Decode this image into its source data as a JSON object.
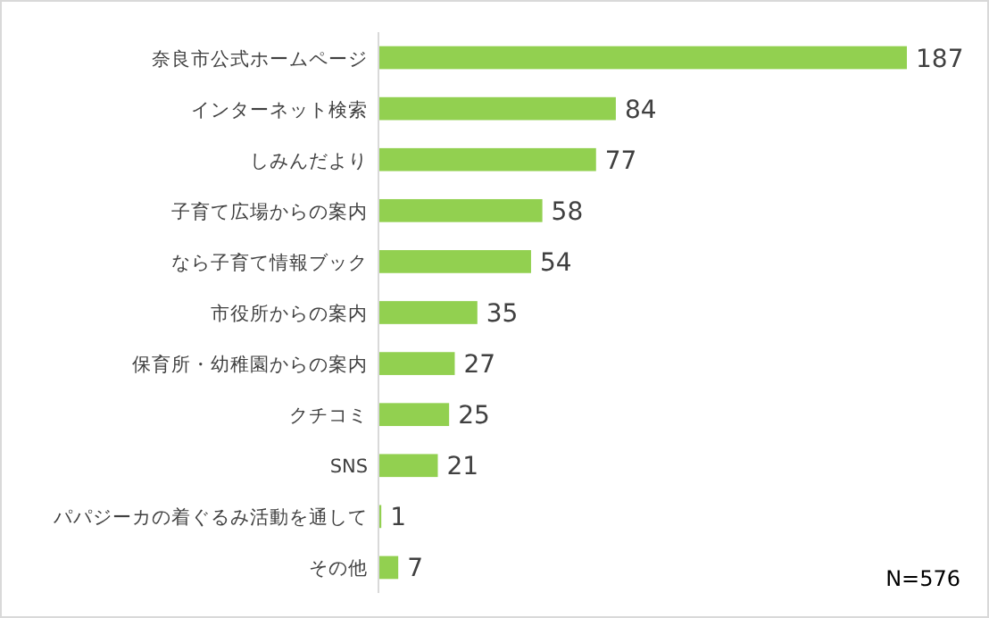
{
  "chart_data": {
    "type": "bar",
    "orientation": "horizontal",
    "categories": [
      "奈良市公式ホームページ",
      "インターネット検索",
      "しみんだより",
      "子育て広場からの案内",
      "なら子育て情報ブック",
      "市役所からの案内",
      "保育所・幼稚園からの案内",
      "クチコミ",
      "SNS",
      "パパジーカの着ぐるみ活動を通して",
      "その他"
    ],
    "values": [
      187,
      84,
      77,
      58,
      54,
      35,
      27,
      25,
      21,
      1,
      7
    ],
    "color": "#92d050",
    "data_labels": true,
    "annotations": [
      "N=576"
    ]
  }
}
